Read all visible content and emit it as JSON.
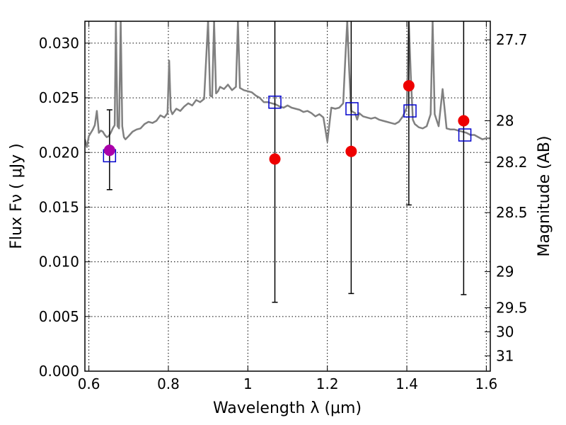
{
  "chart_data": {
    "type": "scatter",
    "xlabel": "Wavelength  λ (μm)",
    "ylabel": "Flux  Fν  ( μJy )",
    "ylabel_right": "Magnitude (AB)",
    "xlim": [
      0.59,
      1.61
    ],
    "ylim": [
      0.0,
      0.032
    ],
    "grid": true,
    "x_ticks": [
      0.6,
      0.8,
      1.0,
      1.2,
      1.4,
      1.6
    ],
    "x_tick_labels": [
      "0.6",
      "0.8",
      "1",
      "1.2",
      "1.4",
      "1.6"
    ],
    "y_ticks": [
      0.0,
      0.005,
      0.01,
      0.015,
      0.02,
      0.025,
      0.03
    ],
    "y_tick_labels": [
      "0.000",
      "0.005",
      "0.010",
      "0.015",
      "0.020",
      "0.025",
      "0.030"
    ],
    "right_ticks": [
      {
        "label": "27.7",
        "flux": 0.0303
      },
      {
        "label": "28",
        "flux": 0.0229
      },
      {
        "label": "28.2",
        "flux": 0.0191
      },
      {
        "label": "28.5",
        "flux": 0.0145
      },
      {
        "label": "29",
        "flux": 0.0091
      },
      {
        "label": "29.5",
        "flux": 0.0058
      },
      {
        "label": "30",
        "flux": 0.0036
      },
      {
        "label": "31",
        "flux": 0.0014
      }
    ],
    "colors": {
      "model_spectrum": "#808080",
      "model_photometry": "#0000cc",
      "observed": "#ee0000",
      "observed_hst": "#aa00aa",
      "errorbar": "#000000",
      "grid": "#000000"
    },
    "series": [
      {
        "style": "line",
        "x": [
          0.59,
          0.595,
          0.6,
          0.605,
          0.61,
          0.615,
          0.62,
          0.625,
          0.63,
          0.635,
          0.64,
          0.645,
          0.65,
          0.655,
          0.66,
          0.665,
          0.668,
          0.672,
          0.676,
          0.68,
          0.684,
          0.688,
          0.692,
          0.7,
          0.71,
          0.72,
          0.73,
          0.74,
          0.75,
          0.76,
          0.77,
          0.78,
          0.79,
          0.798,
          0.802,
          0.806,
          0.81,
          0.82,
          0.83,
          0.84,
          0.85,
          0.86,
          0.87,
          0.88,
          0.89,
          0.9,
          0.905,
          0.91,
          0.915,
          0.92,
          0.925,
          0.93,
          0.94,
          0.95,
          0.96,
          0.97,
          0.975,
          0.98,
          0.985,
          0.99,
          1.0,
          1.01,
          1.02,
          1.03,
          1.04,
          1.05,
          1.06,
          1.07,
          1.08,
          1.09,
          1.1,
          1.11,
          1.12,
          1.13,
          1.14,
          1.15,
          1.16,
          1.17,
          1.18,
          1.19,
          1.2,
          1.21,
          1.22,
          1.23,
          1.24,
          1.245,
          1.25,
          1.255,
          1.26,
          1.27,
          1.275,
          1.28,
          1.29,
          1.3,
          1.31,
          1.32,
          1.33,
          1.34,
          1.35,
          1.36,
          1.37,
          1.38,
          1.39,
          1.4,
          1.405,
          1.41,
          1.415,
          1.42,
          1.43,
          1.44,
          1.45,
          1.46,
          1.465,
          1.47,
          1.48,
          1.49,
          1.5,
          1.51,
          1.52,
          1.53,
          1.54,
          1.55,
          1.56,
          1.57,
          1.58,
          1.59,
          1.6,
          1.61
        ],
        "y": [
          0.0212,
          0.0205,
          0.0215,
          0.0218,
          0.0221,
          0.0225,
          0.0238,
          0.0218,
          0.022,
          0.0219,
          0.0216,
          0.0214,
          0.0215,
          0.0218,
          0.0222,
          0.0225,
          0.032,
          0.0224,
          0.0222,
          0.032,
          0.0224,
          0.0214,
          0.0212,
          0.0215,
          0.0219,
          0.0221,
          0.0222,
          0.0226,
          0.0228,
          0.0227,
          0.0229,
          0.0234,
          0.0232,
          0.0236,
          0.0284,
          0.0239,
          0.0235,
          0.024,
          0.0238,
          0.0242,
          0.0245,
          0.0243,
          0.0248,
          0.0246,
          0.0249,
          0.032,
          0.0252,
          0.0251,
          0.032,
          0.0254,
          0.0256,
          0.026,
          0.0258,
          0.0262,
          0.0257,
          0.026,
          0.032,
          0.0259,
          0.0258,
          0.0257,
          0.0256,
          0.0255,
          0.0252,
          0.025,
          0.0246,
          0.0246,
          0.0245,
          0.0244,
          0.0242,
          0.0241,
          0.0243,
          0.0241,
          0.024,
          0.0239,
          0.0237,
          0.0238,
          0.0236,
          0.0233,
          0.0235,
          0.0232,
          0.021,
          0.0241,
          0.024,
          0.0241,
          0.0245,
          0.0285,
          0.032,
          0.0275,
          0.0238,
          0.0236,
          0.023,
          0.0236,
          0.0233,
          0.0232,
          0.0231,
          0.0232,
          0.023,
          0.0229,
          0.0228,
          0.0227,
          0.0226,
          0.0228,
          0.0233,
          0.0241,
          0.032,
          0.0271,
          0.023,
          0.0226,
          0.0223,
          0.0222,
          0.0224,
          0.0235,
          0.032,
          0.0235,
          0.0224,
          0.0258,
          0.0222,
          0.0221,
          0.0221,
          0.022,
          0.0219,
          0.0218,
          0.0216,
          0.0216,
          0.0214,
          0.0212,
          0.0213,
          0.0213
        ]
      },
      {
        "style": "open-square",
        "x": [
          0.652,
          1.068,
          1.262,
          1.408,
          1.546
        ],
        "y": [
          0.0197,
          0.0246,
          0.024,
          0.0238,
          0.0216
        ]
      },
      {
        "style": "filled-circle",
        "x": [
          1.068,
          1.26,
          1.405,
          1.543
        ],
        "y": [
          0.0194,
          0.0201,
          0.0261,
          0.0229
        ],
        "errors_low": [
          0.0063,
          0.0071,
          0.0152,
          0.007
        ],
        "errors_high": [
          0.032,
          0.032,
          0.032,
          0.032
        ]
      },
      {
        "style": "filled-circle",
        "x": [
          0.652
        ],
        "y": [
          0.0202
        ],
        "errors_low": [
          0.0166
        ],
        "errors_high": [
          0.0239
        ]
      }
    ]
  }
}
